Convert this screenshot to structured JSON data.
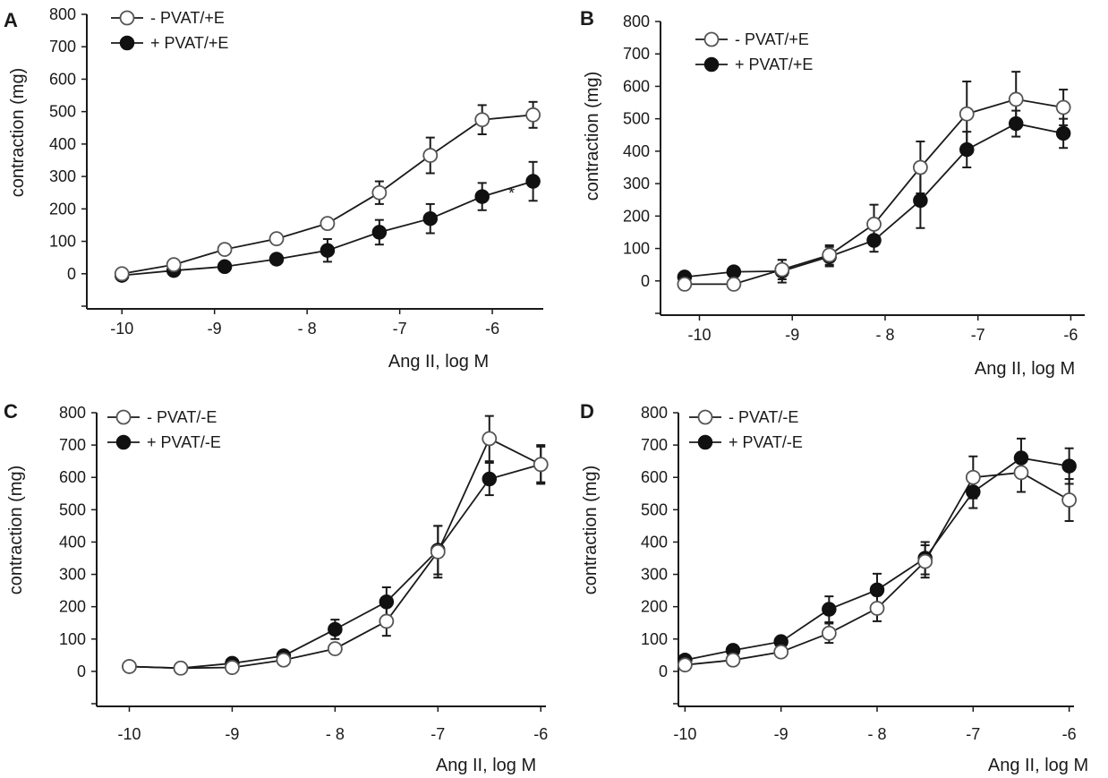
{
  "chart_data": [
    {
      "type": "line",
      "panel": "A",
      "title": "",
      "xlabel": "Ang II, log M",
      "ylabel": "contraction (mg)",
      "xlim": [
        -10.35,
        -5.45
      ],
      "ylim": [
        -100,
        800
      ],
      "xticks": [
        -10,
        -9,
        -8,
        -7,
        -6
      ],
      "xtick_labels": [
        "-10",
        "-9",
        "- 8",
        "-7",
        "-6"
      ],
      "yticks": [
        0,
        100,
        200,
        300,
        400,
        500,
        600,
        700,
        800
      ],
      "ytick_labels": [
        "0",
        "100",
        "200",
        "300",
        "400",
        "500",
        "600",
        "700",
        "800"
      ],
      "legend": "top-left",
      "annotation": "*",
      "series": [
        {
          "name": "- PVAT/+E",
          "marker": "open",
          "x": [
            -10,
            -9.44,
            -8.89,
            -8.33,
            -7.78,
            -7.22,
            -6.67,
            -6.11,
            -5.56
          ],
          "y": [
            0,
            28,
            75,
            108,
            155,
            250,
            365,
            475,
            490
          ],
          "err": [
            0,
            0,
            0,
            0,
            0,
            35,
            55,
            45,
            40
          ]
        },
        {
          "name": "+ PVAT/+E",
          "marker": "filled",
          "x": [
            -10,
            -9.44,
            -8.89,
            -8.33,
            -7.78,
            -7.22,
            -6.67,
            -6.11,
            -5.56
          ],
          "y": [
            -5,
            10,
            22,
            45,
            72,
            128,
            170,
            238,
            285
          ],
          "err": [
            0,
            0,
            0,
            0,
            35,
            38,
            45,
            42,
            60
          ]
        }
      ]
    },
    {
      "type": "line",
      "panel": "B",
      "title": "",
      "xlabel": "Ang II, log M",
      "ylabel": "contraction (mg)",
      "xlim": [
        -10.4,
        -5.85
      ],
      "ylim": [
        -100,
        800
      ],
      "xticks": [
        -10,
        -9,
        -8,
        -7,
        -6
      ],
      "xtick_labels": [
        "-10",
        "-9",
        "- 8",
        "-7",
        "-6"
      ],
      "yticks": [
        0,
        100,
        200,
        300,
        400,
        500,
        600,
        700,
        800
      ],
      "ytick_labels": [
        "0",
        "100",
        "200",
        "300",
        "400",
        "500",
        "600",
        "700",
        "800"
      ],
      "legend": "top-left",
      "series": [
        {
          "name": "- PVAT/+E",
          "marker": "open",
          "x": [
            -10.16,
            -9.63,
            -9.11,
            -8.6,
            -8.12,
            -7.62,
            -7.12,
            -6.59,
            -6.08
          ],
          "y": [
            -10,
            -10,
            35,
            80,
            175,
            350,
            515,
            560,
            535
          ],
          "err": [
            0,
            0,
            30,
            30,
            60,
            80,
            100,
            85,
            55
          ]
        },
        {
          "name": "+ PVAT/+E",
          "marker": "filled",
          "x": [
            -10.16,
            -9.63,
            -9.11,
            -8.6,
            -8.12,
            -7.62,
            -7.12,
            -6.59,
            -6.08
          ],
          "y": [
            12,
            28,
            30,
            75,
            125,
            248,
            405,
            485,
            455
          ],
          "err": [
            0,
            0,
            35,
            30,
            35,
            85,
            55,
            40,
            45
          ]
        }
      ]
    },
    {
      "type": "line",
      "panel": "C",
      "title": "",
      "xlabel": "Ang II, log M",
      "ylabel": "contraction (mg)",
      "xlim": [
        -10.3,
        -5.95
      ],
      "ylim": [
        -100,
        800
      ],
      "xticks": [
        -10,
        -9,
        -8,
        -7,
        -6
      ],
      "xtick_labels": [
        "-10",
        "-9",
        "- 8",
        "-7",
        "-6"
      ],
      "yticks": [
        0,
        100,
        200,
        300,
        400,
        500,
        600,
        700,
        800
      ],
      "ytick_labels": [
        "0",
        "100",
        "200",
        "300",
        "400",
        "500",
        "600",
        "700",
        "800"
      ],
      "legend": "top-left",
      "series": [
        {
          "name": "- PVAT/-E",
          "marker": "open",
          "x": [
            -10,
            -9.5,
            -9,
            -8.5,
            -8,
            -7.5,
            -7,
            -6.5,
            -6
          ],
          "y": [
            15,
            10,
            12,
            35,
            70,
            155,
            370,
            720,
            640
          ],
          "err": [
            0,
            0,
            0,
            0,
            0,
            45,
            80,
            70,
            55
          ]
        },
        {
          "name": "+ PVAT/-E",
          "marker": "filled",
          "x": [
            -10,
            -9.5,
            -9,
            -8.5,
            -8,
            -7.5,
            -7,
            -6.5,
            -6
          ],
          "y": [
            15,
            10,
            25,
            48,
            130,
            215,
            375,
            595,
            640
          ],
          "err": [
            0,
            0,
            0,
            0,
            30,
            45,
            75,
            50,
            60
          ]
        }
      ]
    },
    {
      "type": "line",
      "panel": "D",
      "title": "",
      "xlabel": "Ang II, log M",
      "ylabel": "contraction (mg)",
      "xlim": [
        -10.05,
        -5.95
      ],
      "ylim": [
        -100,
        800
      ],
      "xticks": [
        -10,
        -9,
        -8,
        -7,
        -6
      ],
      "xtick_labels": [
        "-10",
        "-9",
        "- 8",
        "-7",
        "-6"
      ],
      "yticks": [
        0,
        100,
        200,
        300,
        400,
        500,
        600,
        700,
        800
      ],
      "ytick_labels": [
        "0",
        "100",
        "200",
        "300",
        "400",
        "500",
        "600",
        "700",
        "800"
      ],
      "legend": "top-left",
      "series": [
        {
          "name": "- PVAT/-E",
          "marker": "open",
          "x": [
            -10,
            -9.5,
            -9,
            -8.5,
            -8,
            -7.5,
            -7,
            -6.5,
            -6
          ],
          "y": [
            20,
            35,
            60,
            118,
            195,
            340,
            600,
            615,
            530
          ],
          "err": [
            0,
            0,
            0,
            30,
            40,
            50,
            65,
            60,
            65
          ]
        },
        {
          "name": "+ PVAT/-E",
          "marker": "filled",
          "x": [
            -10,
            -9.5,
            -9,
            -8.5,
            -8,
            -7.5,
            -7,
            -6.5,
            -6
          ],
          "y": [
            35,
            65,
            92,
            192,
            252,
            350,
            555,
            660,
            635
          ],
          "err": [
            0,
            0,
            0,
            40,
            50,
            50,
            50,
            60,
            55
          ]
        }
      ]
    }
  ]
}
